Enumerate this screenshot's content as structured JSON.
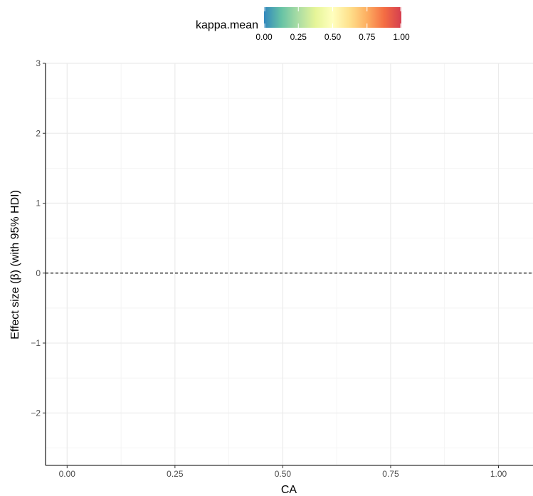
{
  "chart_data": {
    "type": "scatter",
    "title": "",
    "xlabel": "CA",
    "ylabel": "Effect size (β) (with 95% HDI)",
    "xlim": [
      -0.05,
      1.08
    ],
    "ylim": [
      -2.75,
      3.0
    ],
    "x_ticks": [
      0.0,
      0.25,
      0.5,
      0.75,
      1.0
    ],
    "x_tick_labels": [
      "0.00",
      "0.25",
      "0.50",
      "0.75",
      "1.00"
    ],
    "y_ticks": [
      -2,
      -1,
      0,
      1,
      2,
      3
    ],
    "y_tick_labels": [
      "−2",
      "−1",
      "0",
      "1",
      "2",
      "3"
    ],
    "grid": true,
    "reference_line": {
      "y": 0,
      "style": "dashed"
    },
    "series": [],
    "legend": {
      "title": "kappa.mean",
      "position": "top",
      "range": [
        0,
        1
      ],
      "ticks": [
        "0.00",
        "0.25",
        "0.50",
        "0.75",
        "1.00"
      ],
      "tick_values": [
        0,
        0.25,
        0.5,
        0.75,
        1.0
      ],
      "colors": [
        "#3288bd",
        "#66c2a5",
        "#abdda4",
        "#e6f598",
        "#ffffbf",
        "#fee08b",
        "#fdae61",
        "#f46d43",
        "#d53e4f"
      ]
    }
  }
}
